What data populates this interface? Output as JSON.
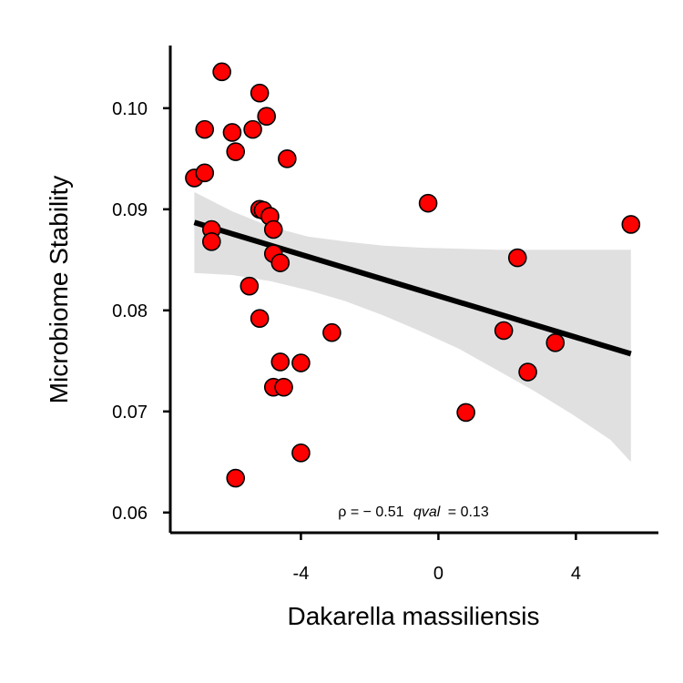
{
  "chart_data": {
    "type": "scatter",
    "title": "",
    "xlabel": "Dakarella massiliensis",
    "ylabel": "Microbiome Stability",
    "xlim": [
      -7.8,
      6.4
    ],
    "ylim": [
      0.058,
      0.1062
    ],
    "xticks": [
      -4,
      0,
      4
    ],
    "xtick_labels": [
      "-4",
      "0",
      "4"
    ],
    "yticks": [
      0.06,
      0.07,
      0.08,
      0.09,
      0.1
    ],
    "ytick_labels": [
      "0.06",
      "0.07",
      "0.08",
      "0.09",
      "0.10"
    ],
    "grid": false,
    "legend": "none",
    "annotation": {
      "rho_label": "ρ = − 0.51",
      "qval_label": "qval",
      "qval_value": "= 0.13"
    },
    "colors": {
      "point_fill": "#ff0000",
      "point_stroke": "#000000",
      "fit_line": "#000000",
      "confidence_band": "#e0e0e0"
    },
    "points": [
      {
        "x": -6.3,
        "y": 0.1036
      },
      {
        "x": -5.2,
        "y": 0.1015
      },
      {
        "x": -5.0,
        "y": 0.0992
      },
      {
        "x": -6.8,
        "y": 0.0979
      },
      {
        "x": -6.0,
        "y": 0.0976
      },
      {
        "x": -5.4,
        "y": 0.0979
      },
      {
        "x": -5.9,
        "y": 0.0957
      },
      {
        "x": -4.4,
        "y": 0.095
      },
      {
        "x": -7.1,
        "y": 0.0931
      },
      {
        "x": -6.8,
        "y": 0.0936
      },
      {
        "x": -5.2,
        "y": 0.09
      },
      {
        "x": -5.1,
        "y": 0.0899
      },
      {
        "x": -4.9,
        "y": 0.0893
      },
      {
        "x": -4.8,
        "y": 0.088
      },
      {
        "x": -6.6,
        "y": 0.088
      },
      {
        "x": -6.6,
        "y": 0.0868
      },
      {
        "x": -4.8,
        "y": 0.0856
      },
      {
        "x": -4.6,
        "y": 0.0847
      },
      {
        "x": -5.5,
        "y": 0.0824
      },
      {
        "x": -5.2,
        "y": 0.0792
      },
      {
        "x": -3.1,
        "y": 0.0778
      },
      {
        "x": -4.6,
        "y": 0.0749
      },
      {
        "x": -4.0,
        "y": 0.0748
      },
      {
        "x": -4.8,
        "y": 0.0724
      },
      {
        "x": -4.5,
        "y": 0.0724
      },
      {
        "x": -4.0,
        "y": 0.0659
      },
      {
        "x": -5.9,
        "y": 0.0634
      },
      {
        "x": -0.3,
        "y": 0.0906
      },
      {
        "x": 0.8,
        "y": 0.0699
      },
      {
        "x": 1.9,
        "y": 0.078
      },
      {
        "x": 2.3,
        "y": 0.0852
      },
      {
        "x": 2.6,
        "y": 0.0739
      },
      {
        "x": 3.4,
        "y": 0.0768
      },
      {
        "x": 5.6,
        "y": 0.0885
      }
    ],
    "fit_line": {
      "x": [
        -7.1,
        5.6
      ],
      "y": [
        0.0887,
        0.0757
      ]
    },
    "confidence_band": {
      "x": [
        -7.1,
        -6.0,
        -4.9,
        -3.8,
        -2.7,
        -1.6,
        -0.5,
        0.6,
        1.7,
        2.8,
        3.9,
        5.0,
        5.6
      ],
      "upper": [
        0.0917,
        0.0898,
        0.0883,
        0.0873,
        0.0868,
        0.0864,
        0.0862,
        0.0861,
        0.086,
        0.086,
        0.086,
        0.086,
        0.086
      ],
      "lower": [
        0.0837,
        0.0835,
        0.0829,
        0.082,
        0.0809,
        0.0795,
        0.0779,
        0.0762,
        0.0741,
        0.072,
        0.0697,
        0.0672,
        0.065
      ]
    }
  }
}
